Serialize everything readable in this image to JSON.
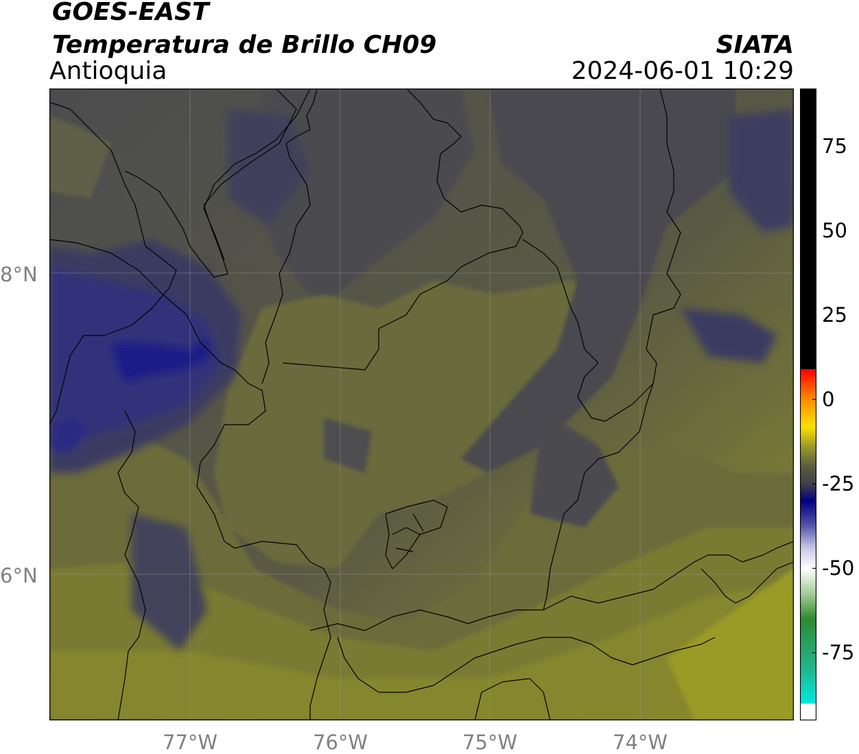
{
  "header": {
    "satellite": "GOES-EAST",
    "product": "Temperatura de Brillo CH09",
    "region": "Antioquia",
    "organization": "SIATA",
    "datetime": "2024-06-01 10:29"
  },
  "map": {
    "lon_ticks": [
      "77°W",
      "76°W",
      "75°W",
      "74°W"
    ],
    "lat_ticks": [
      "8°N",
      "6°N"
    ],
    "gridlines": true,
    "colors": {
      "warm_olive": "#8a8a2e",
      "mid_olive": "#6b6b3c",
      "gray": "#4a4a4e",
      "blue_gray": "#3a3a5e",
      "cold_blue": "#1a1a80",
      "boundary": "#000000"
    }
  },
  "colorbar": {
    "tick_labels": [
      "75",
      "50",
      "25",
      "0",
      "-25",
      "-50",
      "-75"
    ],
    "tick_values": [
      75,
      50,
      25,
      0,
      -25,
      -50,
      -75
    ],
    "range": [
      -95,
      92
    ],
    "stops": [
      {
        "v": 92,
        "c": "#000000"
      },
      {
        "v": 9,
        "c": "#000000"
      },
      {
        "v": 8.9,
        "c": "#ff0000"
      },
      {
        "v": 0,
        "c": "#ff8c00"
      },
      {
        "v": -8,
        "c": "#ffe000"
      },
      {
        "v": -14,
        "c": "#9a9a2a"
      },
      {
        "v": -20,
        "c": "#5a5a40"
      },
      {
        "v": -25,
        "c": "#40404c"
      },
      {
        "v": -30,
        "c": "#000080"
      },
      {
        "v": -37,
        "c": "#5050a8"
      },
      {
        "v": -44,
        "c": "#c8c8e4"
      },
      {
        "v": -50,
        "c": "#ffffff"
      },
      {
        "v": -58,
        "c": "#9cc890"
      },
      {
        "v": -65,
        "c": "#2e8a2e"
      },
      {
        "v": -80,
        "c": "#20b890"
      },
      {
        "v": -90,
        "c": "#00e8e0"
      },
      {
        "v": -90.1,
        "c": "#ffffff"
      },
      {
        "v": -95,
        "c": "#ffffff"
      }
    ]
  }
}
